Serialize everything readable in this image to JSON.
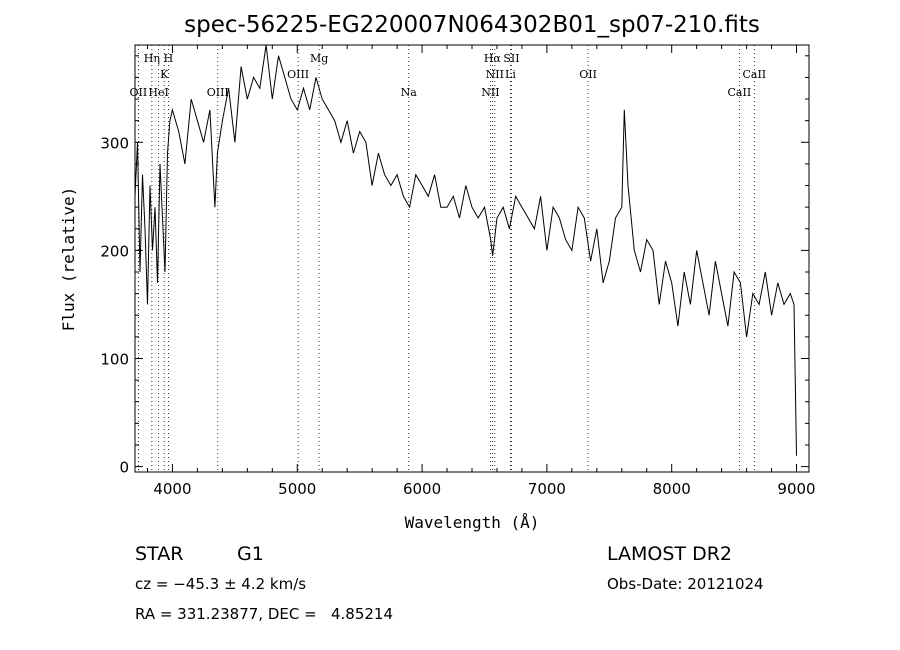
{
  "chart_data": {
    "type": "line",
    "title": "spec-56225-EG220007N064302B01_sp07-210.fits",
    "xlabel": "Wavelength (Å)",
    "ylabel": "Flux (relative)",
    "xlim": [
      3700,
      9100
    ],
    "ylim": [
      -5,
      390
    ],
    "xticks": [
      4000,
      5000,
      6000,
      7000,
      8000,
      9000
    ],
    "yticks": [
      0,
      100,
      200,
      300
    ],
    "grid": false,
    "x": [
      3700,
      3720,
      3740,
      3760,
      3780,
      3800,
      3820,
      3840,
      3860,
      3880,
      3900,
      3920,
      3940,
      3960,
      3980,
      4000,
      4050,
      4100,
      4150,
      4200,
      4250,
      4300,
      4340,
      4360,
      4400,
      4450,
      4500,
      4550,
      4600,
      4650,
      4700,
      4750,
      4800,
      4850,
      4900,
      4950,
      5000,
      5050,
      5100,
      5150,
      5200,
      5250,
      5300,
      5350,
      5400,
      5450,
      5500,
      5550,
      5600,
      5650,
      5700,
      5750,
      5800,
      5850,
      5900,
      5950,
      6000,
      6050,
      6100,
      6150,
      6200,
      6250,
      6300,
      6350,
      6400,
      6450,
      6500,
      6550,
      6565,
      6600,
      6650,
      6700,
      6750,
      6800,
      6850,
      6900,
      6950,
      7000,
      7050,
      7100,
      7150,
      7200,
      7250,
      7300,
      7350,
      7400,
      7450,
      7500,
      7550,
      7600,
      7620,
      7650,
      7700,
      7750,
      7800,
      7850,
      7900,
      7950,
      8000,
      8050,
      8100,
      8150,
      8200,
      8250,
      8300,
      8350,
      8400,
      8450,
      8500,
      8550,
      8600,
      8650,
      8700,
      8750,
      8800,
      8850,
      8900,
      8950,
      8980,
      9000
    ],
    "values": [
      250,
      300,
      180,
      270,
      220,
      150,
      260,
      200,
      240,
      170,
      280,
      230,
      180,
      290,
      320,
      330,
      310,
      280,
      340,
      320,
      300,
      330,
      240,
      290,
      320,
      350,
      300,
      370,
      340,
      360,
      350,
      390,
      340,
      380,
      360,
      340,
      330,
      350,
      330,
      360,
      340,
      330,
      320,
      300,
      320,
      290,
      310,
      300,
      260,
      290,
      270,
      260,
      270,
      250,
      240,
      270,
      260,
      250,
      270,
      240,
      240,
      250,
      230,
      260,
      240,
      230,
      240,
      210,
      195,
      230,
      240,
      220,
      250,
      240,
      230,
      220,
      250,
      200,
      240,
      230,
      210,
      200,
      240,
      230,
      190,
      220,
      170,
      190,
      230,
      240,
      330,
      260,
      200,
      180,
      210,
      200,
      150,
      190,
      170,
      130,
      180,
      150,
      200,
      170,
      140,
      190,
      160,
      130,
      180,
      170,
      120,
      160,
      150,
      180,
      140,
      170,
      150,
      160,
      150,
      10
    ],
    "annotations": [
      {
        "label": "Hη",
        "x": 3835,
        "row": 1
      },
      {
        "label": "H",
        "x": 3968,
        "row": 1
      },
      {
        "label": "K",
        "x": 3934,
        "row": 2
      },
      {
        "label": "OII",
        "x": 3727,
        "row": 3
      },
      {
        "label": "HeI",
        "x": 3889,
        "row": 3
      },
      {
        "label": "OIII",
        "x": 4363,
        "row": 3
      },
      {
        "label": "Mg",
        "x": 5175,
        "row": 1
      },
      {
        "label": "OIII",
        "x": 5007,
        "row": 2
      },
      {
        "label": "Na",
        "x": 5893,
        "row": 3
      },
      {
        "label": "Hα",
        "x": 6563,
        "row": 1
      },
      {
        "label": "NII",
        "x": 6583,
        "row": 2
      },
      {
        "label": "Li",
        "x": 6708,
        "row": 2
      },
      {
        "label": "NII",
        "x": 6548,
        "row": 3
      },
      {
        "label": "OII",
        "x": 7330,
        "row": 2
      },
      {
        "label": "SII",
        "x": 6716,
        "row": 1
      },
      {
        "label": "CaII",
        "x": 8662,
        "row": 2
      },
      {
        "label": "CaII",
        "x": 8542,
        "row": 3
      }
    ]
  },
  "info": {
    "class": "STAR",
    "subclass": "G1",
    "survey": "LAMOST DR2",
    "cz": "cz = −45.3 ± 4.2 km/s",
    "obsdate": "Obs-Date: 20121024",
    "coords": "RA = 331.23877, DEC =   4.85214"
  }
}
